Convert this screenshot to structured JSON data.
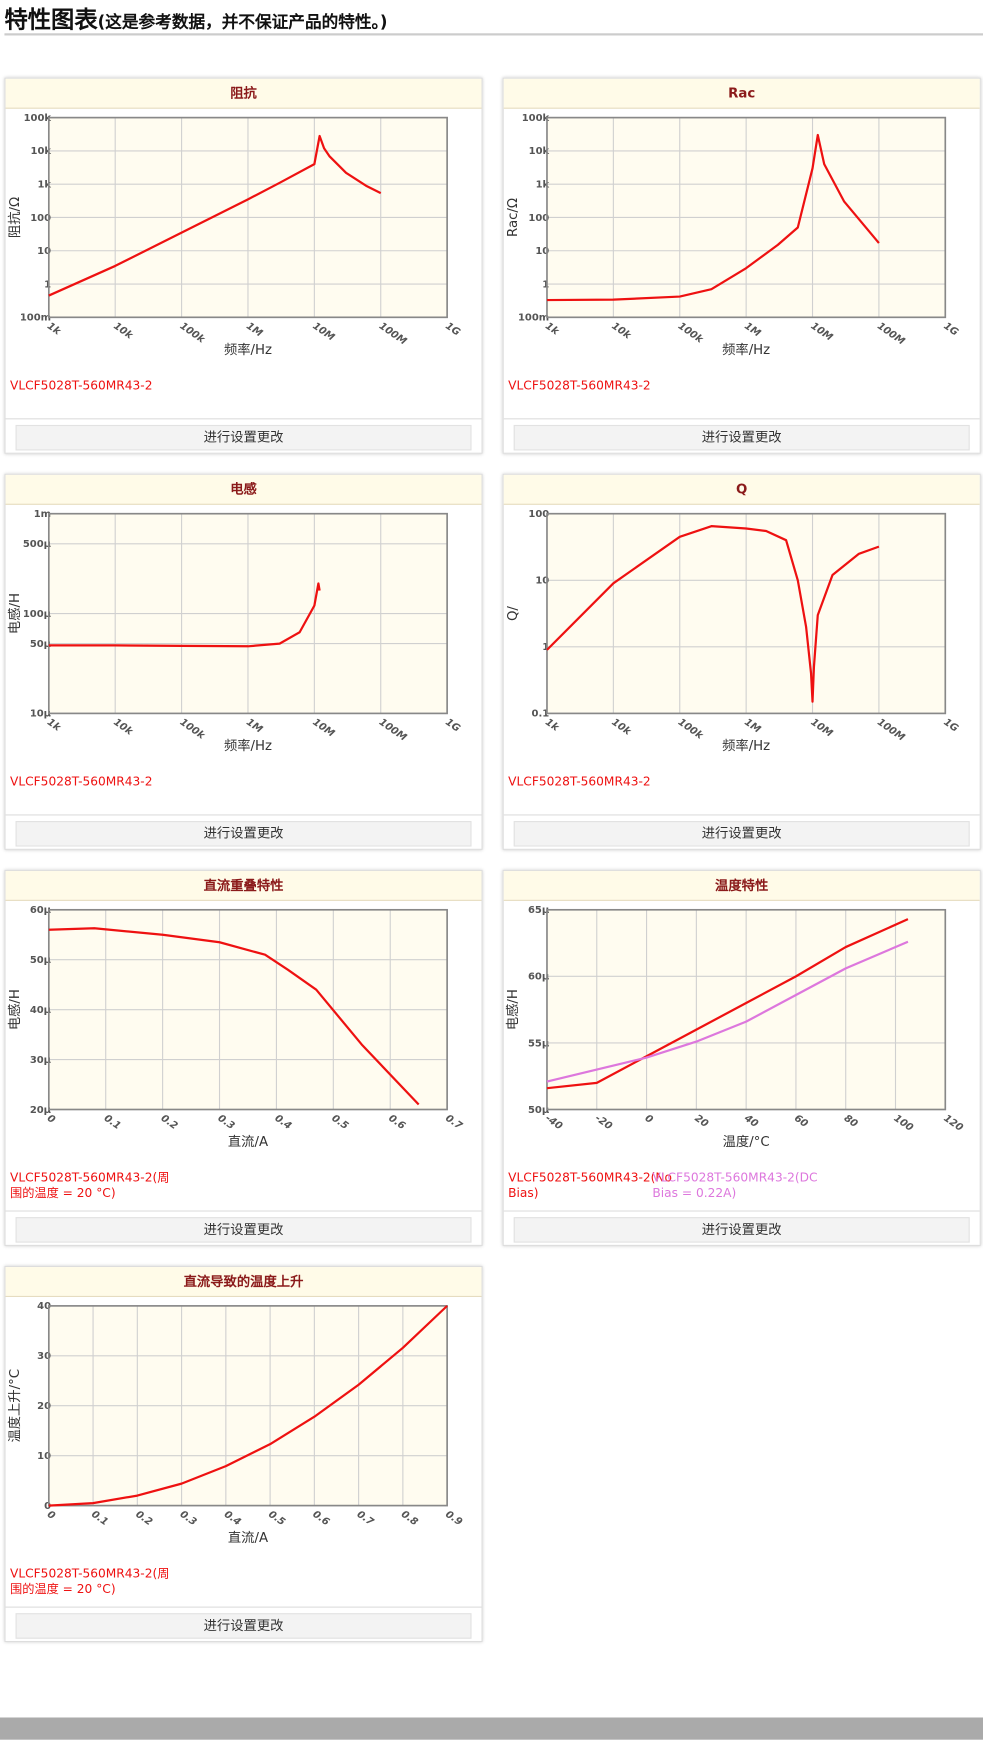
{
  "header": {
    "title": "特性图表",
    "subtitle": "(这是参考数据，并不保证产品的特性。)"
  },
  "buttons": [
    "进行设置更改",
    "进行设置更改",
    "进行设置更改",
    "进行设置更改",
    "进行设置更改",
    "进行设置更改",
    "进行设置更改"
  ],
  "chart_data": [
    {
      "type": "line",
      "title": "阻抗",
      "x_label": "频率/Hz",
      "y_label": "阻抗/Ω",
      "xlog": true,
      "ylog": true,
      "grid": true,
      "xlim": [
        1000,
        1000000000
      ],
      "ylim": [
        0.1,
        100000
      ],
      "xticks": [
        {
          "value": 1000,
          "label": "1k"
        },
        {
          "value": 10000,
          "label": "10k"
        },
        {
          "value": 100000,
          "label": "100k"
        },
        {
          "value": 1000000,
          "label": "1M"
        },
        {
          "value": 10000000,
          "label": "10M"
        },
        {
          "value": 100000000,
          "label": "100M"
        },
        {
          "value": 1000000000,
          "label": "1G"
        }
      ],
      "yticks": [
        {
          "value": 0.1,
          "label": "100m"
        },
        1,
        10,
        100,
        {
          "value": 1000,
          "label": "1k"
        },
        {
          "value": 10000,
          "label": "10k"
        },
        {
          "value": 100000,
          "label": "100k"
        }
      ],
      "x": [
        1000,
        10000,
        100000,
        1000000,
        3000000,
        10000000,
        12000000,
        14000000,
        17000000,
        30000000,
        60000000,
        100000000
      ],
      "series": [
        {
          "name": "VLCF5028T-560MR43-2",
          "color": "#ee1111",
          "values": [
            0.45,
            3.5,
            35,
            350,
            1100,
            4000,
            28000,
            12000,
            6800,
            2200,
            900,
            540
          ]
        }
      ]
    },
    {
      "type": "line",
      "title": "Rac",
      "x_label": "频率/Hz",
      "y_label": "Rac/Ω",
      "xlog": true,
      "ylog": true,
      "grid": true,
      "xlim": [
        1000,
        1000000000
      ],
      "ylim": [
        0.1,
        100000
      ],
      "xticks": [
        {
          "value": 1000,
          "label": "1k"
        },
        {
          "value": 10000,
          "label": "10k"
        },
        {
          "value": 100000,
          "label": "100k"
        },
        {
          "value": 1000000,
          "label": "1M"
        },
        {
          "value": 10000000,
          "label": "10M"
        },
        {
          "value": 100000000,
          "label": "100M"
        },
        {
          "value": 1000000000,
          "label": "1G"
        }
      ],
      "yticks": [
        {
          "value": 0.1,
          "label": "100m"
        },
        1,
        10,
        100,
        {
          "value": 1000,
          "label": "1k"
        },
        {
          "value": 10000,
          "label": "10k"
        },
        {
          "value": 100000,
          "label": "100k"
        }
      ],
      "x": [
        1000,
        10000,
        100000,
        300000,
        1000000,
        3000000,
        6000000,
        10000000,
        12000000,
        15000000,
        30000000,
        100000000
      ],
      "series": [
        {
          "name": "VLCF5028T-560MR43-2",
          "color": "#ee1111",
          "values": [
            0.33,
            0.34,
            0.42,
            0.7,
            3,
            15,
            50,
            3000,
            30000,
            4000,
            300,
            17
          ]
        }
      ]
    },
    {
      "type": "line",
      "title": "电感",
      "x_label": "频率/Hz",
      "y_label": "电感/H",
      "xlog": true,
      "ylog": true,
      "grid": true,
      "xlim": [
        1000,
        1000000000
      ],
      "ylim": [
        1e-05,
        0.001
      ],
      "xticks": [
        {
          "value": 1000,
          "label": "1k"
        },
        {
          "value": 10000,
          "label": "10k"
        },
        {
          "value": 100000,
          "label": "100k"
        },
        {
          "value": 1000000,
          "label": "1M"
        },
        {
          "value": 10000000,
          "label": "10M"
        },
        {
          "value": 100000000,
          "label": "100M"
        },
        {
          "value": 1000000000,
          "label": "1G"
        }
      ],
      "yticks": [
        {
          "value": 1e-05,
          "label": "10µ"
        },
        {
          "value": 5e-05,
          "label": "50µ"
        },
        {
          "value": 0.0001,
          "label": "100µ"
        },
        {
          "value": 0.0005,
          "label": "500µ"
        },
        {
          "value": 0.001,
          "label": "1m"
        }
      ],
      "x": [
        1000,
        10000,
        100000,
        1000000,
        3000000,
        6000000,
        10000000,
        11500000,
        12000000
      ],
      "series": [
        {
          "name": "VLCF5028T-560MR43-2",
          "color": "#ee1111",
          "values": [
            4.8e-05,
            4.8e-05,
            4.75e-05,
            4.7e-05,
            5e-05,
            6.5e-05,
            0.00012,
            0.0002,
            0.00017
          ]
        }
      ]
    },
    {
      "type": "line",
      "title": "Q",
      "x_label": "频率/Hz",
      "y_label": "Q/",
      "xlog": true,
      "ylog": true,
      "grid": true,
      "xlim": [
        1000,
        1000000000
      ],
      "ylim": [
        0.1,
        100
      ],
      "xticks": [
        {
          "value": 1000,
          "label": "1k"
        },
        {
          "value": 10000,
          "label": "10k"
        },
        {
          "value": 100000,
          "label": "100k"
        },
        {
          "value": 1000000,
          "label": "1M"
        },
        {
          "value": 10000000,
          "label": "10M"
        },
        {
          "value": 100000000,
          "label": "100M"
        },
        {
          "value": 1000000000,
          "label": "1G"
        }
      ],
      "yticks": [
        0.1,
        1,
        10,
        100
      ],
      "x": [
        1000,
        10000,
        100000,
        300000,
        1000000,
        2000000,
        4000000,
        6000000,
        8000000,
        9500000,
        10000000,
        10500000,
        12000000,
        20000000,
        50000000,
        100000000
      ],
      "series": [
        {
          "name": "VLCF5028T-560MR43-2",
          "color": "#ee1111",
          "values": [
            0.9,
            9,
            45,
            65,
            60,
            55,
            40,
            10,
            2,
            0.4,
            0.15,
            0.5,
            3,
            12,
            25,
            32
          ]
        }
      ]
    },
    {
      "type": "line",
      "title": "直流重叠特性",
      "x_label": "直流/A",
      "y_label": "电感/H",
      "xlog": false,
      "ylog": false,
      "grid": true,
      "xlim": [
        0,
        0.7
      ],
      "ylim": [
        2e-05,
        6e-05
      ],
      "xticks": [
        0,
        0.1,
        0.2,
        0.3,
        0.4,
        0.5,
        0.6,
        0.7
      ],
      "yticks": [
        {
          "value": 2e-05,
          "label": "20µ"
        },
        {
          "value": 3e-05,
          "label": "30µ"
        },
        {
          "value": 4e-05,
          "label": "40µ"
        },
        {
          "value": 5e-05,
          "label": "50µ"
        },
        {
          "value": 6e-05,
          "label": "60µ"
        }
      ],
      "x": [
        0,
        0.08,
        0.2,
        0.3,
        0.38,
        0.42,
        0.47,
        0.55,
        0.65
      ],
      "series": [
        {
          "name": "VLCF5028T-560MR43-2(周围的温度 = 20 °C)",
          "color": "#ee1111",
          "values": [
            5.6e-05,
            5.63e-05,
            5.5e-05,
            5.35e-05,
            5.1e-05,
            4.8e-05,
            4.4e-05,
            3.3e-05,
            2.1e-05
          ]
        }
      ]
    },
    {
      "type": "line",
      "title": "温度特性",
      "x_label": "温度/°C",
      "y_label": "电感/H",
      "xlog": false,
      "ylog": false,
      "grid": true,
      "xlim": [
        -40,
        120
      ],
      "ylim": [
        5e-05,
        6.5e-05
      ],
      "xticks": [
        -40,
        -20,
        0,
        20,
        40,
        60,
        80,
        100,
        120
      ],
      "yticks": [
        {
          "value": 5e-05,
          "label": "50µ"
        },
        {
          "value": 5.5e-05,
          "label": "55µ"
        },
        {
          "value": 6e-05,
          "label": "60µ"
        },
        {
          "value": 6.5e-05,
          "label": "65µ"
        }
      ],
      "x": [
        -40,
        -20,
        0,
        20,
        40,
        60,
        80,
        105
      ],
      "series": [
        {
          "name": "VLCF5028T-560MR43-2(No Bias)",
          "color": "#ee1111",
          "values": [
            5.16e-05,
            5.2e-05,
            5.4e-05,
            5.6e-05,
            5.8e-05,
            6e-05,
            6.22e-05,
            6.43e-05
          ]
        },
        {
          "name": "VLCF5028T-560MR43-2(DC Bias = 0.22A)",
          "color": "#dd77dd",
          "values": [
            5.21e-05,
            5.3e-05,
            5.39e-05,
            5.51e-05,
            5.66e-05,
            5.86e-05,
            6.06e-05,
            6.26e-05
          ]
        }
      ]
    },
    {
      "type": "line",
      "title": "直流导致的温度上升",
      "x_label": "直流/A",
      "y_label": "温度上升/°C",
      "xlog": false,
      "ylog": false,
      "grid": true,
      "xlim": [
        0,
        0.9
      ],
      "ylim": [
        0,
        40
      ],
      "xticks": [
        0,
        0.1,
        0.2,
        0.3,
        0.4,
        0.5,
        0.6,
        0.7,
        0.8,
        0.9
      ],
      "yticks": [
        0,
        10,
        20,
        30,
        40
      ],
      "x": [
        0,
        0.1,
        0.2,
        0.3,
        0.4,
        0.5,
        0.6,
        0.7,
        0.8,
        0.9
      ],
      "series": [
        {
          "name": "VLCF5028T-560MR43-2(周围的温度 = 20 °C)",
          "color": "#ee1111",
          "values": [
            0,
            0.5,
            2,
            4.4,
            7.9,
            12.3,
            17.8,
            24.2,
            31.6,
            40
          ]
        }
      ]
    }
  ]
}
